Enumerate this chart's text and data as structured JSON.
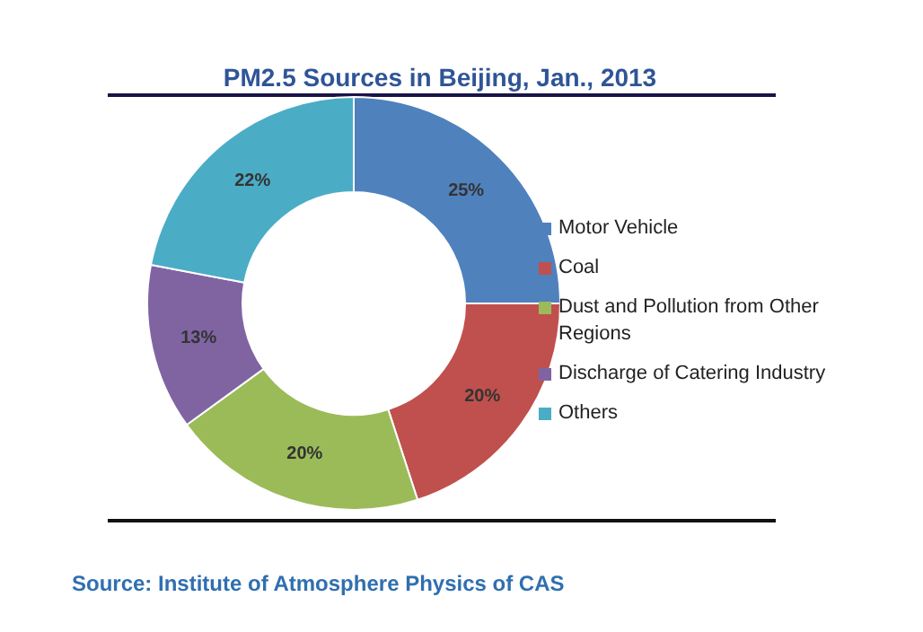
{
  "chart_data": {
    "type": "donut",
    "title": "PM2.5 Sources in Beijing, Jan., 2013",
    "categories": [
      "Motor Vehicle",
      "Coal",
      "Dust and Pollution from Other Regions",
      "Discharge of Catering Industry",
      "Others"
    ],
    "values": [
      25,
      20,
      20,
      13,
      22
    ],
    "value_labels": [
      "25%",
      "20%",
      "20%",
      "13%",
      "22%"
    ],
    "colors": [
      "#4f81bd",
      "#c0504d",
      "#9bbb59",
      "#8064a2",
      "#4bacc6"
    ],
    "legend": "right",
    "annotations": [
      "Source: Institute of Atmosphere Physics of CAS"
    ]
  }
}
